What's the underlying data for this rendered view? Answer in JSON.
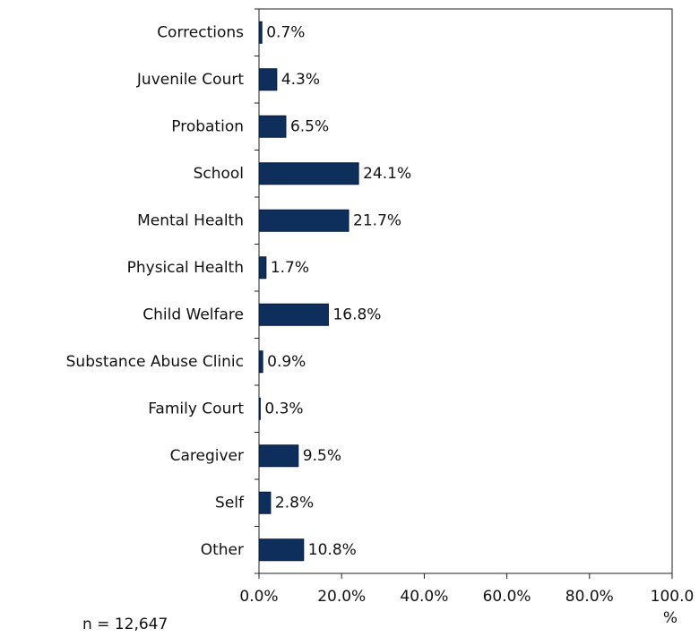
{
  "chart_data": {
    "type": "bar",
    "orientation": "horizontal",
    "categories": [
      "Corrections",
      "Juvenile Court",
      "Probation",
      "School",
      "Mental Health",
      "Physical Health",
      "Child Welfare",
      "Substance Abuse Clinic",
      "Family Court",
      "Caregiver",
      "Self",
      "Other"
    ],
    "values": [
      0.7,
      4.3,
      6.5,
      24.1,
      21.7,
      1.7,
      16.8,
      0.9,
      0.3,
      9.5,
      2.8,
      10.8
    ],
    "value_labels": [
      "0.7%",
      "4.3%",
      "6.5%",
      "24.1%",
      "21.7%",
      "1.7%",
      "16.8%",
      "0.9%",
      "0.3%",
      "9.5%",
      "2.8%",
      "10.8%"
    ],
    "color": "#0e2f5c",
    "xlim": [
      0,
      100
    ],
    "xticks": [
      {
        "value": 0,
        "label": "0.0%"
      },
      {
        "value": 20,
        "label": "20.0%"
      },
      {
        "value": 40,
        "label": "40.0%"
      },
      {
        "value": 60,
        "label": "60.0%"
      },
      {
        "value": 80,
        "label": "80.0%"
      },
      {
        "value": 100,
        "label": "100.0"
      }
    ],
    "x_label": "%",
    "annotation": "n = 12,647"
  }
}
